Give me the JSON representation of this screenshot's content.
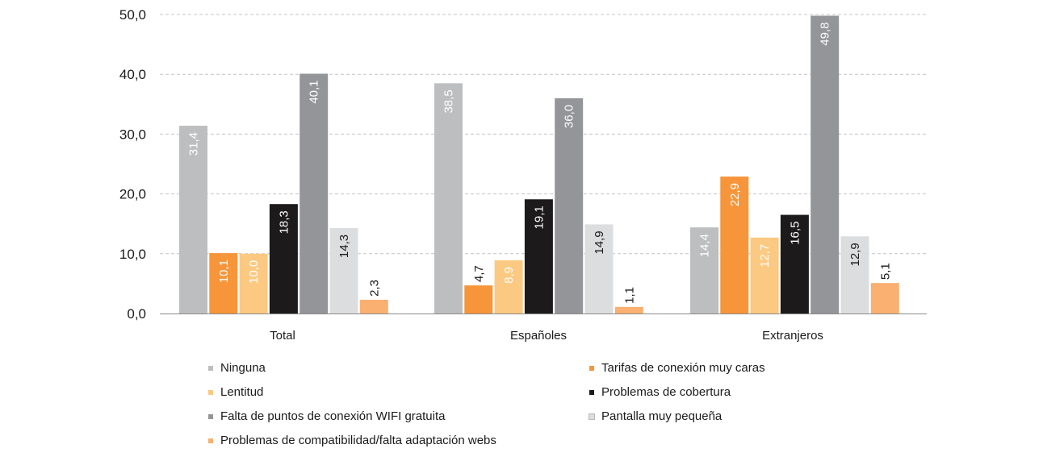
{
  "chart_data": {
    "type": "bar",
    "title": "",
    "xlabel": "",
    "ylabel": "",
    "ylim": [
      0,
      50
    ],
    "yticks": [
      "0,0",
      "10,0",
      "20,0",
      "30,0",
      "40,0",
      "50,0"
    ],
    "ytick_values": [
      0,
      10,
      20,
      30,
      40,
      50
    ],
    "grid": "horizontal dashed",
    "legend_position": "bottom",
    "categories": [
      "Total",
      "Españoles",
      "Extranjeros"
    ],
    "series": [
      {
        "name": "Ninguna",
        "color": "#bdbec0",
        "label_color": "#ffffff",
        "values": [
          31.4,
          38.5,
          14.4
        ],
        "labels": [
          "31,4",
          "38,5",
          "14,4"
        ]
      },
      {
        "name": "Tarifas de conexión muy caras",
        "color": "#f7953a",
        "label_color": "#ffffff",
        "values": [
          10.1,
          4.7,
          22.9
        ],
        "labels": [
          "10,1",
          "4,7",
          "22,9"
        ]
      },
      {
        "name": "Lentitud",
        "color": "#fbc981",
        "label_color": "#ffffff",
        "values": [
          10.0,
          8.9,
          12.7
        ],
        "labels": [
          "10,0",
          "8,9",
          "12,7"
        ]
      },
      {
        "name": "Problemas de cobertura",
        "color": "#1c1a1a",
        "label_color": "#ffffff",
        "values": [
          18.3,
          19.1,
          16.5
        ],
        "labels": [
          "18,3",
          "19,1",
          "16,5"
        ]
      },
      {
        "name": "Falta de puntos de conexión WIFI gratuita",
        "color": "#939598",
        "label_color": "#ffffff",
        "values": [
          40.1,
          36.0,
          49.8
        ],
        "labels": [
          "40,1",
          "36,0",
          "49,8"
        ]
      },
      {
        "name": "Pantalla muy pequeña",
        "color": "#dcdddf",
        "label_color": "#1a1a1a",
        "values": [
          14.3,
          14.9,
          12.9
        ],
        "labels": [
          "14,3",
          "14,9",
          "12,9"
        ]
      },
      {
        "name": "Problemas de compatibilidad/falta adaptación webs",
        "color": "#f9b071",
        "label_color": "#1a1a1a",
        "values": [
          2.3,
          1.1,
          5.1
        ],
        "labels": [
          "2,3",
          "1,1",
          "5,1"
        ]
      }
    ]
  }
}
